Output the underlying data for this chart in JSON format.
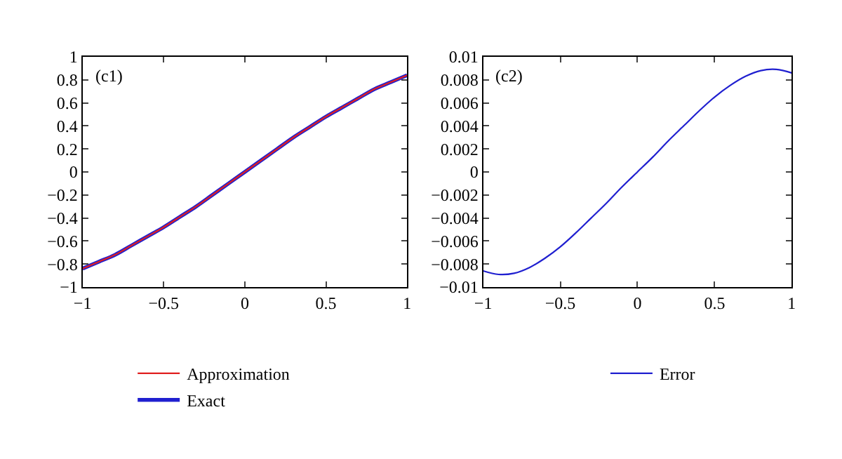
{
  "chart_data": [
    {
      "type": "line",
      "annotations": [
        "(c1)"
      ],
      "x": [
        -1,
        -0.9,
        -0.8,
        -0.7,
        -0.6,
        -0.5,
        -0.4,
        -0.3,
        -0.2,
        -0.1,
        0,
        0.1,
        0.2,
        0.3,
        0.4,
        0.5,
        0.6,
        0.7,
        0.8,
        0.9,
        1
      ],
      "series": [
        {
          "name": "Approximation",
          "color": "#e02020",
          "values": [
            -0.84,
            -0.78,
            -0.72,
            -0.64,
            -0.56,
            -0.48,
            -0.39,
            -0.3,
            -0.2,
            -0.1,
            0,
            0.1,
            0.2,
            0.3,
            0.39,
            0.48,
            0.56,
            0.64,
            0.72,
            0.78,
            0.84
          ]
        },
        {
          "name": "Exact",
          "color": "#2020d0",
          "values": [
            -0.84,
            -0.78,
            -0.72,
            -0.64,
            -0.56,
            -0.48,
            -0.39,
            -0.3,
            -0.2,
            -0.1,
            0,
            0.1,
            0.2,
            0.3,
            0.39,
            0.48,
            0.56,
            0.64,
            0.72,
            0.78,
            0.84
          ]
        }
      ],
      "xlim": [
        -1,
        1
      ],
      "xticks": [
        -1,
        -0.5,
        0,
        0.5,
        1
      ],
      "ylim": [
        -1,
        1
      ],
      "yticks": [
        -1,
        -0.8,
        -0.6,
        -0.4,
        -0.2,
        0,
        0.2,
        0.4,
        0.6,
        0.8,
        1
      ],
      "legend": "bottom",
      "line_style": "solid",
      "marker": "none"
    },
    {
      "type": "line",
      "annotations": [
        "(c2)"
      ],
      "x": [
        -1,
        -0.9,
        -0.8,
        -0.7,
        -0.6,
        -0.5,
        -0.4,
        -0.3,
        -0.2,
        -0.1,
        0,
        0.1,
        0.2,
        0.3,
        0.4,
        0.5,
        0.6,
        0.7,
        0.8,
        0.9,
        1
      ],
      "series": [
        {
          "name": "Error",
          "color": "#2020d0",
          "values": [
            -0.0086,
            -0.0089,
            -0.0088,
            -0.0083,
            -0.0075,
            -0.0065,
            -0.0053,
            -0.004,
            -0.0027,
            -0.0013,
            0,
            0.0013,
            0.0027,
            0.004,
            0.0053,
            0.0065,
            0.0075,
            0.0083,
            0.0088,
            0.0089,
            0.0086
          ]
        }
      ],
      "xlim": [
        -1,
        1
      ],
      "xticks": [
        -1,
        -0.5,
        0,
        0.5,
        1
      ],
      "ylim": [
        -0.01,
        0.01
      ],
      "yticks": [
        -0.01,
        -0.008,
        -0.006,
        -0.004,
        -0.002,
        0,
        0.002,
        0.004,
        0.006,
        0.008,
        0.01
      ],
      "legend": "bottom",
      "line_style": "solid",
      "marker": "none"
    }
  ]
}
